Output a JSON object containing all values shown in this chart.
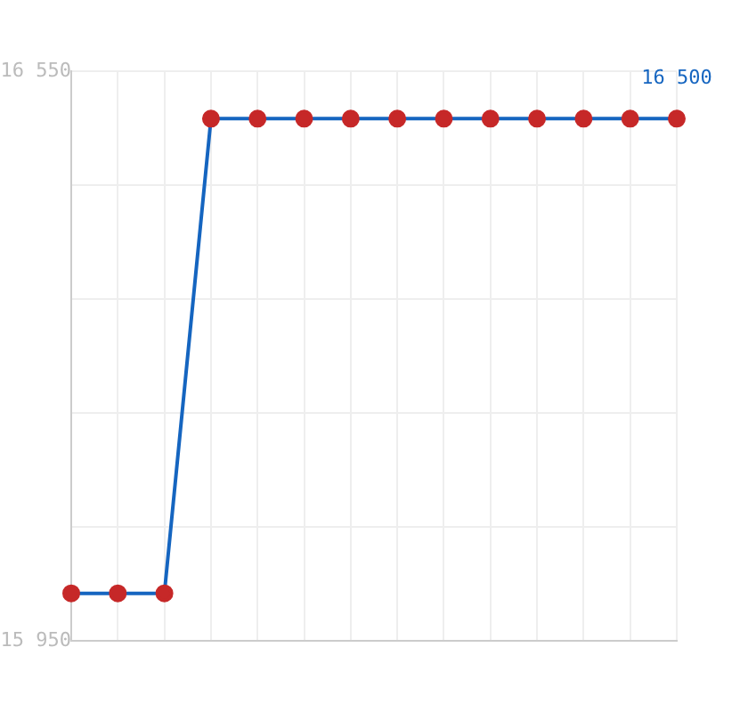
{
  "chart_data": {
    "type": "line",
    "categories": [
      null,
      null,
      null,
      null,
      null,
      null,
      null,
      null,
      null,
      null,
      null,
      null,
      null,
      null
    ],
    "series": [
      {
        "color": "#1565c0",
        "colors": [
          "#c62828",
          "#c62828",
          "#c62828",
          "#c62828",
          "#c62828",
          "#c62828",
          "#c62828",
          "#c62828",
          "#c62828",
          "#c62828",
          "#c62828",
          "#c62828",
          "#c62828",
          "#c62828"
        ],
        "values": [
          16000,
          16000,
          16000,
          16500,
          16500,
          16500,
          16500,
          16500,
          16500,
          16500,
          16500,
          16500,
          16500,
          16500
        ],
        "value_labels": [
          null,
          null,
          null,
          null,
          null,
          null,
          null,
          null,
          null,
          null,
          null,
          null,
          null,
          "16 500"
        ]
      }
    ],
    "ylim": [
      15950,
      16550
    ],
    "yticks": [
      {
        "value": 15950,
        "label": "15 950"
      },
      {
        "value": 16070,
        "label": null
      },
      {
        "value": 16190,
        "label": null
      },
      {
        "value": 16310,
        "label": null
      },
      {
        "value": 16430,
        "label": null
      },
      {
        "value": 16550,
        "label": "16 550"
      }
    ],
    "tick_labels": "y",
    "grid": true,
    "legend": false,
    "marker": "circle",
    "line_style": "solid"
  }
}
